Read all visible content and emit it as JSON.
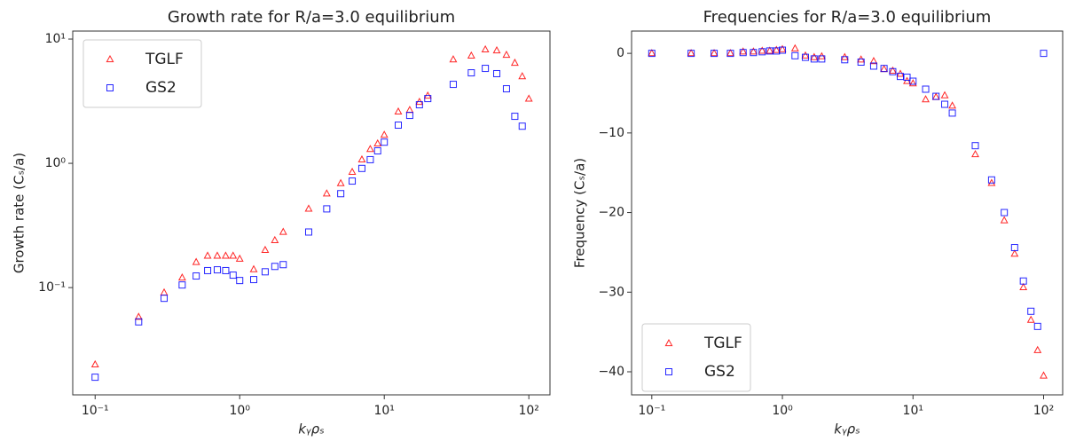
{
  "chart_data": [
    {
      "type": "scatter",
      "title": "Growth rate for R/a=3.0 equilibrium",
      "xlabel": "kᵧρₛ",
      "ylabel": "Growth rate (Cₛ/a)",
      "xlog": true,
      "ylog": true,
      "legend": "upper left",
      "xlim": [
        0.07,
        140
      ],
      "ylim": [
        0.0137,
        11.6
      ],
      "xticks": [
        {
          "value": 0.1,
          "label": "10⁻¹"
        },
        {
          "value": 1,
          "label": "10⁰"
        },
        {
          "value": 10,
          "label": "10¹"
        },
        {
          "value": 100,
          "label": "10²"
        }
      ],
      "yticks": [
        {
          "value": 0.1,
          "label": "10⁻¹"
        },
        {
          "value": 1,
          "label": "10⁰"
        },
        {
          "value": 10,
          "label": "10¹"
        }
      ],
      "x": [
        0.1,
        0.2,
        0.3,
        0.4,
        0.5,
        0.6,
        0.7,
        0.8,
        0.9,
        1.0,
        1.25,
        1.5,
        1.75,
        2.0,
        3,
        4,
        5,
        6,
        7,
        8,
        9,
        10,
        12.5,
        15,
        17.5,
        20,
        30,
        40,
        50,
        60,
        70,
        80,
        90,
        100
      ],
      "series": [
        {
          "name": "TGLF",
          "color": "#ff0000",
          "marker": "triangle",
          "values": [
            0.024,
            0.058,
            0.091,
            0.12,
            0.16,
            0.18,
            0.18,
            0.18,
            0.18,
            0.17,
            0.14,
            0.2,
            0.24,
            0.28,
            0.43,
            0.57,
            0.69,
            0.85,
            1.07,
            1.3,
            1.44,
            1.69,
            2.6,
            2.68,
            3.11,
            3.49,
            6.84,
            7.33,
            8.22,
            8.08,
            7.44,
            6.42,
            5.0,
            3.3
          ]
        },
        {
          "name": "GS2",
          "color": "#0000ff",
          "marker": "square",
          "values": [
            0.019,
            0.053,
            0.082,
            0.105,
            0.124,
            0.137,
            0.139,
            0.137,
            0.126,
            0.114,
            0.116,
            0.134,
            0.148,
            0.153,
            0.28,
            0.43,
            0.57,
            0.72,
            0.91,
            1.07,
            1.26,
            1.48,
            2.03,
            2.43,
            2.96,
            3.32,
            4.32,
            5.35,
            5.81,
            5.27,
            3.98,
            2.39,
            1.99,
            null
          ]
        }
      ]
    },
    {
      "type": "scatter",
      "title": "Frequencies for R/a=3.0 equilibrium",
      "xlabel": "kᵧρₛ",
      "ylabel": "Frequency (Cₛ/a)",
      "xlog": true,
      "ylog": false,
      "legend": "lower left",
      "xlim": [
        0.07,
        140
      ],
      "ylim": [
        -42.9,
        2.8
      ],
      "xticks": [
        {
          "value": 0.1,
          "label": "10⁻¹"
        },
        {
          "value": 1,
          "label": "10⁰"
        },
        {
          "value": 10,
          "label": "10¹"
        },
        {
          "value": 100,
          "label": "10²"
        }
      ],
      "yticks": [
        0,
        {
          "value": -10,
          "label": "−10"
        },
        {
          "value": -20,
          "label": "−20"
        },
        {
          "value": -30,
          "label": "−30"
        },
        {
          "value": -40,
          "label": "−40"
        }
      ],
      "x": [
        0.1,
        0.2,
        0.3,
        0.4,
        0.5,
        0.6,
        0.7,
        0.8,
        0.9,
        1.0,
        1.25,
        1.5,
        1.75,
        2.0,
        3,
        4,
        5,
        6,
        7,
        8,
        9,
        10,
        12.5,
        15,
        17.5,
        20,
        30,
        40,
        50,
        60,
        70,
        80,
        90,
        100
      ],
      "series": [
        {
          "name": "TGLF",
          "color": "#ff0000",
          "marker": "triangle",
          "values": [
            0,
            0,
            0,
            0,
            0.2,
            0.2,
            0.3,
            0.3,
            0.4,
            0.5,
            0.6,
            -0.3,
            -0.5,
            -0.4,
            -0.5,
            -0.8,
            -1.0,
            -2.0,
            -2.2,
            -2.6,
            -3.5,
            -3.8,
            -5.8,
            -5.5,
            -5.3,
            -6.6,
            -12.7,
            -16.3,
            -21,
            -25.2,
            -29.4,
            -33.5,
            -37.3,
            -40.5
          ]
        },
        {
          "name": "GS2",
          "color": "#0000ff",
          "marker": "square",
          "values": [
            0,
            0,
            0,
            0,
            0.1,
            0.1,
            0.2,
            0.3,
            0.3,
            0.4,
            -0.3,
            -0.5,
            -0.7,
            -0.7,
            -0.8,
            -1.1,
            -1.6,
            -1.9,
            -2.3,
            -2.9,
            -3.0,
            -3.5,
            -4.5,
            -5.4,
            -6.4,
            -7.5,
            -11.6,
            -15.9,
            -20,
            -24.4,
            -28.6,
            -32.4,
            -34.3,
            0
          ]
        }
      ]
    }
  ]
}
